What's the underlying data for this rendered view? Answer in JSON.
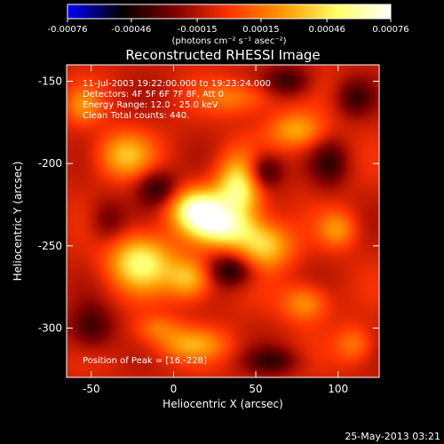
{
  "chart_data": {
    "type": "heatmap",
    "title": "Reconstructed RHESSI Image",
    "xlabel": "Heliocentric X (arcsec)",
    "ylabel": "Heliocentric Y (arcsec)",
    "xlim": [
      -65,
      125
    ],
    "ylim": [
      -330,
      -140
    ],
    "x_ticks": [
      -50,
      0,
      50,
      100
    ],
    "x_tick_labels": [
      "-50",
      "0",
      "50",
      "100"
    ],
    "y_ticks": [
      -300,
      -250,
      -200,
      -150
    ],
    "y_tick_labels": [
      "-300",
      "-250",
      "-200",
      "-150"
    ],
    "colorbar": {
      "range": [
        -0.00076,
        0.00076
      ],
      "ticks": [
        -0.00076,
        -0.00046,
        -0.00015,
        0.00015,
        0.00046,
        0.00076
      ],
      "tick_labels": [
        "-0.00076",
        "-0.00046",
        "-0.00015",
        "0.00015",
        "0.00046",
        "0.00076"
      ],
      "units": "(photons cm⁻² s⁻¹ asec⁻²)",
      "colormap": [
        "#0000ff",
        "#000000",
        "#7f0000",
        "#ff3300",
        "#ff9900",
        "#ffff66",
        "#ffffff"
      ]
    },
    "annotations": [
      "11-Jul-2003 19:22:00.000 to 19:23:24.000",
      "Detectors: 4F 5F 6F 7F 8F, Att 0",
      "Energy Range: 12.0 - 25.0 keV",
      "Clean    Total counts: 440."
    ],
    "peak_label": "Position of Peak = [16,-228]",
    "peak": [
      16,
      -228
    ],
    "sources": [
      {
        "x": 15,
        "y": -228,
        "amp": 1.0,
        "sx": 12,
        "sy": 9
      },
      {
        "x": 40,
        "y": -215,
        "amp": 0.85,
        "sx": 10,
        "sy": 14
      },
      {
        "x": 30,
        "y": -240,
        "amp": 0.7,
        "sx": 14,
        "sy": 8
      },
      {
        "x": -20,
        "y": -260,
        "amp": 0.8,
        "sx": 14,
        "sy": 12
      },
      {
        "x": 10,
        "y": -270,
        "amp": 0.6,
        "sx": 10,
        "sy": 9
      },
      {
        "x": 55,
        "y": -250,
        "amp": 0.65,
        "sx": 12,
        "sy": 10
      },
      {
        "x": -30,
        "y": -195,
        "amp": 0.55,
        "sx": 12,
        "sy": 10
      },
      {
        "x": 75,
        "y": -180,
        "amp": 0.5,
        "sx": 12,
        "sy": 8
      },
      {
        "x": 80,
        "y": -285,
        "amp": 0.45,
        "sx": 10,
        "sy": 8
      },
      {
        "x": 10,
        "y": -310,
        "amp": 0.45,
        "sx": 16,
        "sy": 7
      },
      {
        "x": 100,
        "y": -240,
        "amp": 0.4,
        "sx": 8,
        "sy": 8
      },
      {
        "x": -55,
        "y": -165,
        "amp": 0.35,
        "sx": 8,
        "sy": 8
      },
      {
        "x": 110,
        "y": -310,
        "amp": 0.35,
        "sx": 8,
        "sy": 8
      },
      {
        "x": 40,
        "y": -160,
        "amp": 0.35,
        "sx": 16,
        "sy": 7
      },
      {
        "x": -10,
        "y": -300,
        "amp": 0.3,
        "sx": 10,
        "sy": 6
      },
      {
        "x": 55,
        "y": -205,
        "amp": -0.55,
        "sx": 8,
        "sy": 8
      },
      {
        "x": 35,
        "y": -265,
        "amp": -0.5,
        "sx": 10,
        "sy": 7
      },
      {
        "x": -10,
        "y": -215,
        "amp": -0.45,
        "sx": 9,
        "sy": 8
      },
      {
        "x": 70,
        "y": -150,
        "amp": -0.4,
        "sx": 10,
        "sy": 7
      },
      {
        "x": 95,
        "y": -200,
        "amp": -0.35,
        "sx": 8,
        "sy": 10
      },
      {
        "x": -50,
        "y": -300,
        "amp": -0.4,
        "sx": 10,
        "sy": 10
      },
      {
        "x": 60,
        "y": -320,
        "amp": -0.35,
        "sx": 12,
        "sy": 6
      },
      {
        "x": -40,
        "y": -235,
        "amp": -0.3,
        "sx": 8,
        "sy": 10
      },
      {
        "x": 110,
        "y": -160,
        "amp": -0.35,
        "sx": 8,
        "sy": 8
      }
    ]
  },
  "footer": {
    "timestamp": "25-May-2013 03:21"
  }
}
